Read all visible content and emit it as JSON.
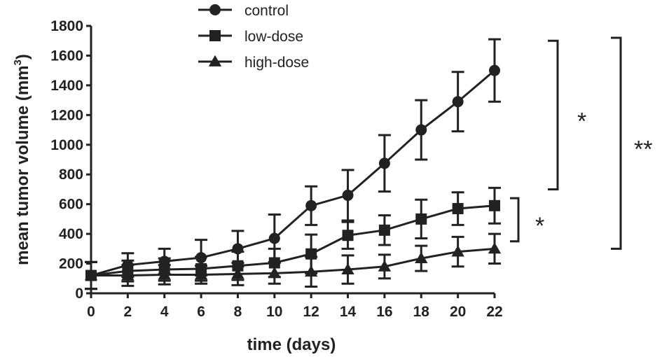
{
  "chart_data": {
    "type": "line",
    "xlabel": "time (days)",
    "ylabel": "mean tumor volume (mm",
    "ylabel_sup": "3",
    "ylabel_close": ")",
    "xlim": [
      0,
      22
    ],
    "ylim": [
      0,
      1800
    ],
    "xticks": [
      0,
      2,
      4,
      6,
      8,
      10,
      12,
      14,
      16,
      18,
      20,
      22
    ],
    "yticks": [
      0,
      200,
      400,
      600,
      800,
      1000,
      1200,
      1400,
      1600,
      1800
    ],
    "grid": false,
    "legend_position": "top-center",
    "x": [
      0,
      2,
      4,
      6,
      8,
      10,
      12,
      14,
      16,
      18,
      20,
      22
    ],
    "series": [
      {
        "name": "control",
        "marker": "circle",
        "values": [
          120,
          190,
          215,
          240,
          300,
          370,
          590,
          660,
          875,
          1100,
          1290,
          1500
        ],
        "errors": [
          90,
          80,
          85,
          120,
          120,
          160,
          130,
          170,
          190,
          200,
          200,
          210
        ]
      },
      {
        "name": "low-dose",
        "marker": "square",
        "values": [
          120,
          150,
          160,
          165,
          185,
          205,
          265,
          390,
          425,
          500,
          570,
          590
        ],
        "errors": [
          90,
          70,
          75,
          80,
          95,
          95,
          130,
          90,
          100,
          130,
          110,
          120
        ]
      },
      {
        "name": "high-dose",
        "marker": "triangle",
        "values": [
          120,
          120,
          125,
          125,
          130,
          135,
          145,
          160,
          180,
          235,
          280,
          300
        ],
        "errors": [
          90,
          70,
          65,
          60,
          75,
          70,
          100,
          95,
          80,
          85,
          100,
          100
        ]
      }
    ],
    "annotations": [
      {
        "label": "*",
        "y_from": 700,
        "y_to": 1700
      },
      {
        "label": "*",
        "y_from": 350,
        "y_to": 640
      },
      {
        "label": "**",
        "y_from": 300,
        "y_to": 1720
      }
    ]
  }
}
